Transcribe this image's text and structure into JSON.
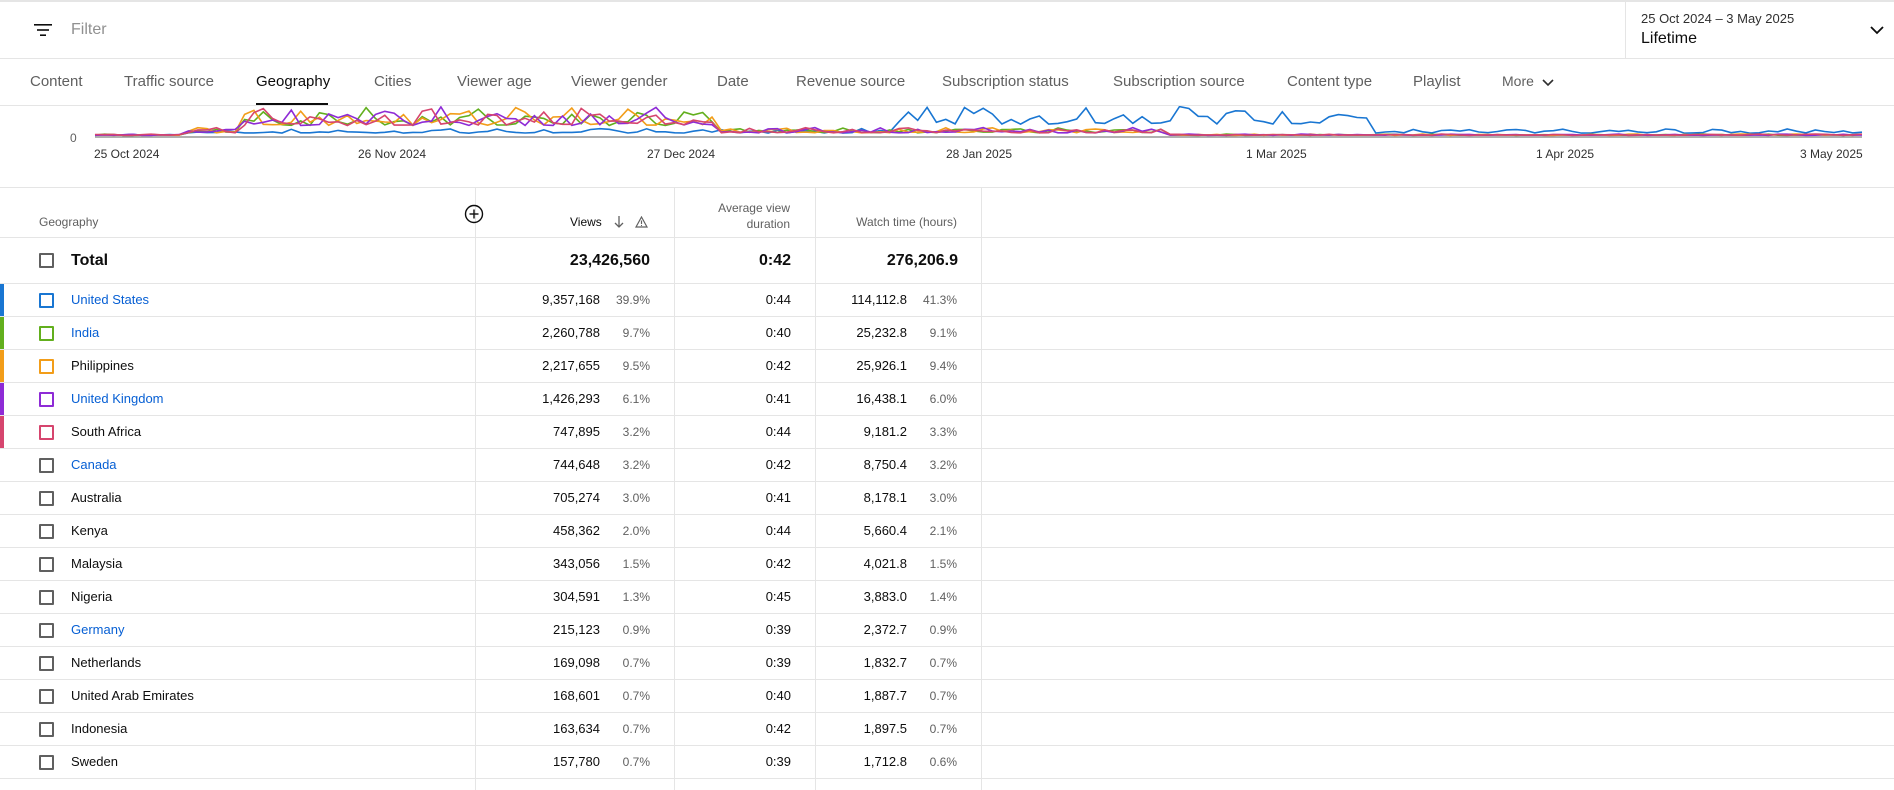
{
  "filter": {
    "placeholder": "Filter",
    "icon": "filter-icon"
  },
  "date_picker": {
    "range": "25 Oct 2024 – 3 May 2025",
    "preset": "Lifetime"
  },
  "tabs": [
    {
      "label": "Content"
    },
    {
      "label": "Traffic source"
    },
    {
      "label": "Geography",
      "active": true
    },
    {
      "label": "Cities"
    },
    {
      "label": "Viewer age"
    },
    {
      "label": "Viewer gender"
    },
    {
      "label": "Date"
    },
    {
      "label": "Revenue source"
    },
    {
      "label": "Subscription status"
    },
    {
      "label": "Subscription source"
    },
    {
      "label": "Content type"
    },
    {
      "label": "Playlist"
    },
    {
      "label": "More"
    }
  ],
  "chart_data": {
    "type": "line",
    "y_tick": "0",
    "x_ticks": [
      "25 Oct 2024",
      "26 Nov 2024",
      "27 Dec 2024",
      "28 Jan 2025",
      "1 Mar 2025",
      "1 Apr 2025",
      "3 May 2025"
    ],
    "series_colors": [
      "#1976d2",
      "#62af1d",
      "#f29d19",
      "#8e2bd6",
      "#d6456e"
    ]
  },
  "table": {
    "headers": {
      "geography": "Geography",
      "views": "Views",
      "avg_view_duration_line1": "Average view",
      "avg_view_duration_line2": "duration",
      "watch_time": "Watch time (hours)"
    },
    "total": {
      "label": "Total",
      "views": "23,426,560",
      "avg": "0:42",
      "watch": "276,206.9"
    },
    "rows": [
      {
        "name": "United States",
        "link": true,
        "color": "#1976d2",
        "views": "9,357,168",
        "views_pct": "39.9%",
        "avg": "0:44",
        "watch": "114,112.8",
        "watch_pct": "41.3%"
      },
      {
        "name": "India",
        "link": true,
        "color": "#62af1d",
        "views": "2,260,788",
        "views_pct": "9.7%",
        "avg": "0:40",
        "watch": "25,232.8",
        "watch_pct": "9.1%"
      },
      {
        "name": "Philippines",
        "link": false,
        "color": "#f29d19",
        "views": "2,217,655",
        "views_pct": "9.5%",
        "avg": "0:42",
        "watch": "25,926.1",
        "watch_pct": "9.4%"
      },
      {
        "name": "United Kingdom",
        "link": true,
        "color": "#8e2bd6",
        "views": "1,426,293",
        "views_pct": "6.1%",
        "avg": "0:41",
        "watch": "16,438.1",
        "watch_pct": "6.0%"
      },
      {
        "name": "South Africa",
        "link": false,
        "color": "#d6456e",
        "views": "747,895",
        "views_pct": "3.2%",
        "avg": "0:44",
        "watch": "9,181.2",
        "watch_pct": "3.3%"
      },
      {
        "name": "Canada",
        "link": true,
        "color": "",
        "views": "744,648",
        "views_pct": "3.2%",
        "avg": "0:42",
        "watch": "8,750.4",
        "watch_pct": "3.2%"
      },
      {
        "name": "Australia",
        "link": false,
        "color": "",
        "views": "705,274",
        "views_pct": "3.0%",
        "avg": "0:41",
        "watch": "8,178.1",
        "watch_pct": "3.0%"
      },
      {
        "name": "Kenya",
        "link": false,
        "color": "",
        "views": "458,362",
        "views_pct": "2.0%",
        "avg": "0:44",
        "watch": "5,660.4",
        "watch_pct": "2.1%"
      },
      {
        "name": "Malaysia",
        "link": false,
        "color": "",
        "views": "343,056",
        "views_pct": "1.5%",
        "avg": "0:42",
        "watch": "4,021.8",
        "watch_pct": "1.5%"
      },
      {
        "name": "Nigeria",
        "link": false,
        "color": "",
        "views": "304,591",
        "views_pct": "1.3%",
        "avg": "0:45",
        "watch": "3,883.0",
        "watch_pct": "1.4%"
      },
      {
        "name": "Germany",
        "link": true,
        "color": "",
        "views": "215,123",
        "views_pct": "0.9%",
        "avg": "0:39",
        "watch": "2,372.7",
        "watch_pct": "0.9%"
      },
      {
        "name": "Netherlands",
        "link": false,
        "color": "",
        "views": "169,098",
        "views_pct": "0.7%",
        "avg": "0:39",
        "watch": "1,832.7",
        "watch_pct": "0.7%"
      },
      {
        "name": "United Arab Emirates",
        "link": false,
        "color": "",
        "views": "168,601",
        "views_pct": "0.7%",
        "avg": "0:40",
        "watch": "1,887.7",
        "watch_pct": "0.7%"
      },
      {
        "name": "Indonesia",
        "link": false,
        "color": "",
        "views": "163,634",
        "views_pct": "0.7%",
        "avg": "0:42",
        "watch": "1,897.5",
        "watch_pct": "0.7%"
      },
      {
        "name": "Sweden",
        "link": false,
        "color": "",
        "views": "157,780",
        "views_pct": "0.7%",
        "avg": "0:39",
        "watch": "1,712.8",
        "watch_pct": "0.6%"
      }
    ]
  }
}
